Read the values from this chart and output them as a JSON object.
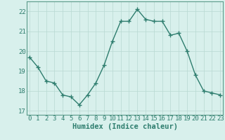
{
  "x": [
    0,
    1,
    2,
    3,
    4,
    5,
    6,
    7,
    8,
    9,
    10,
    11,
    12,
    13,
    14,
    15,
    16,
    17,
    18,
    19,
    20,
    21,
    22,
    23
  ],
  "y": [
    19.7,
    19.2,
    18.5,
    18.4,
    17.8,
    17.7,
    17.3,
    17.8,
    18.4,
    19.3,
    20.5,
    21.5,
    21.5,
    22.1,
    21.6,
    21.5,
    21.5,
    20.8,
    20.9,
    20.0,
    18.8,
    18.0,
    17.9,
    17.8
  ],
  "line_color": "#2e7d6e",
  "marker": "+",
  "markersize": 4,
  "linewidth": 1.0,
  "bg_color": "#d8f0ec",
  "grid_color": "#b8d8d2",
  "xlabel": "Humidex (Indice chaleur)",
  "xlabel_fontsize": 7.5,
  "tick_fontsize": 6.5,
  "ylim": [
    16.8,
    22.5
  ],
  "yticks": [
    17,
    18,
    19,
    20,
    21,
    22
  ],
  "xticks": [
    0,
    1,
    2,
    3,
    4,
    5,
    6,
    7,
    8,
    9,
    10,
    11,
    12,
    13,
    14,
    15,
    16,
    17,
    18,
    19,
    20,
    21,
    22,
    23
  ],
  "xlim": [
    -0.3,
    23.3
  ],
  "spine_color": "#5a9a8a"
}
